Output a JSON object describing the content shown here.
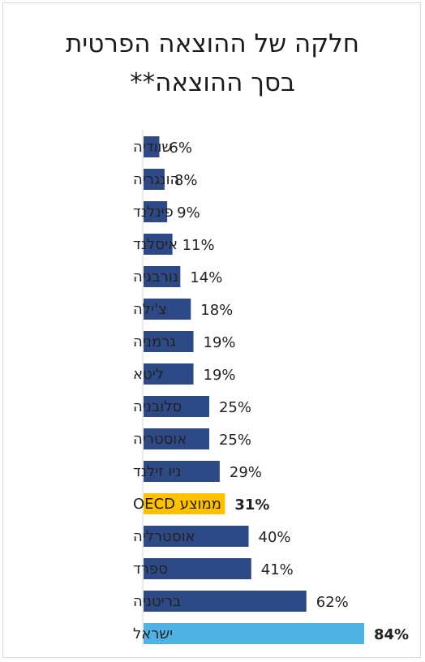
{
  "chart_data": {
    "type": "bar",
    "orientation": "horizontal",
    "title_lines": [
      "חלקה של ההוצאה הפרטית",
      "בסך ההוצאה**"
    ],
    "categories": [
      "שוודיה",
      "הונגריה",
      "פינלנד",
      "איסלנד",
      "נורבגיה",
      "צ'ילה",
      "גרמניה",
      "ליטא",
      "סלובניה",
      "אוסטריה",
      "ניו זילנד",
      "ממוצע OECD",
      "אוסטרליה",
      "ספרד",
      "בריטניה",
      "ישראל"
    ],
    "values": [
      6,
      8,
      9,
      11,
      14,
      18,
      19,
      19,
      25,
      25,
      29,
      31,
      40,
      41,
      62,
      84
    ],
    "value_labels": [
      "6%",
      "8%",
      "9%",
      "11%",
      "14%",
      "18%",
      "19%",
      "19%",
      "25%",
      "25%",
      "29%",
      "31%",
      "40%",
      "41%",
      "62%",
      "84%"
    ],
    "bold_labels": [
      "31%",
      "84%"
    ],
    "colors": {
      "default": "#2e4a86",
      "ממוצע OECD": "#ffc000",
      "ישראל": "#4fb3e6"
    },
    "xlim": [
      0,
      84
    ],
    "grid": false,
    "legend": "none"
  }
}
